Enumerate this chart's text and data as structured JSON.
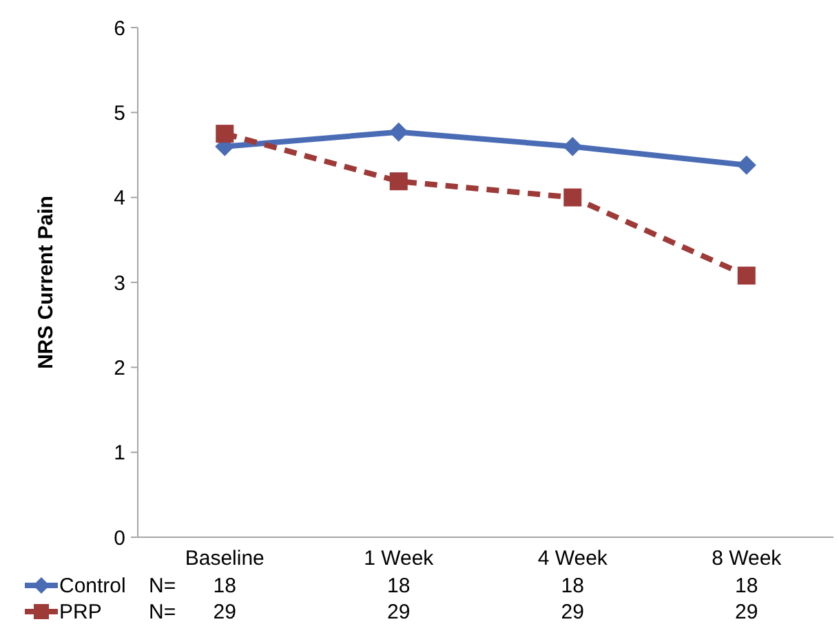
{
  "chart_data": {
    "type": "line",
    "ylabel": "NRS Current Pain",
    "categories": [
      "Baseline",
      "1 Week",
      "4 Week",
      "8 Week"
    ],
    "series": [
      {
        "name": "Control",
        "color": "#4a6cb5",
        "values": [
          4.6,
          4.77,
          4.6,
          4.38
        ],
        "marker": "diamond",
        "line_style": "solid"
      },
      {
        "name": "PRP",
        "color": "#9e3a38",
        "values": [
          4.75,
          4.19,
          4.0,
          3.08
        ],
        "marker": "square",
        "line_style": "dashed"
      }
    ],
    "ylim": [
      0,
      6
    ],
    "yticks": [
      0,
      1,
      2,
      3,
      4,
      5,
      6
    ],
    "grid": false,
    "legend": "bottom left",
    "annotations": [
      "N=",
      "18",
      "18",
      "18",
      "18",
      "N=",
      "29",
      "29",
      "29",
      "29"
    ]
  }
}
